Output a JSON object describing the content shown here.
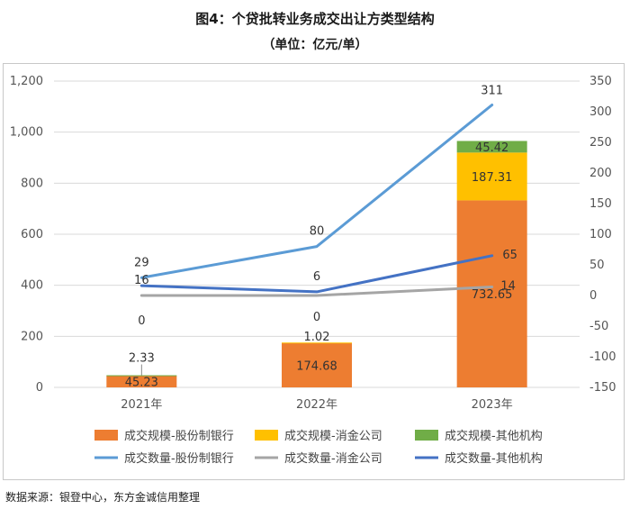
{
  "title": "图4：个贷批转业务成交出让方类型结构",
  "subtitle": "（单位：亿元/单）",
  "source": "数据来源：银登中心，东方金诚信用整理",
  "chart_data": {
    "type": "bar+line",
    "categories": [
      "2021年",
      "2022年",
      "2023年"
    ],
    "left_axis": {
      "min": 0,
      "max": 1200,
      "step": 200,
      "ticks": [
        "0",
        "200",
        "400",
        "600",
        "800",
        "1,000",
        "1,200"
      ]
    },
    "right_axis": {
      "min": -150,
      "max": 350,
      "step": 50,
      "ticks": [
        "-150",
        "-100",
        "-50",
        "0",
        "50",
        "100",
        "150",
        "200",
        "250",
        "300",
        "350"
      ]
    },
    "bar_series": [
      {
        "name": "成交规模-股份制银行",
        "color": "#ED7D31",
        "values": [
          45.23,
          174.68,
          732.65
        ]
      },
      {
        "name": "成交规模-消金公司",
        "color": "#FFC000",
        "values": [
          0,
          1.02,
          187.31
        ]
      },
      {
        "name": "成交规模-其他机构",
        "color": "#70AD47",
        "values": [
          2.33,
          0,
          45.42
        ]
      }
    ],
    "bar_labels": [
      [
        "45.23",
        "174.68",
        "732.65"
      ],
      [
        "",
        "1.02",
        "187.31"
      ],
      [
        "2.33",
        "",
        "45.42"
      ]
    ],
    "line_series": [
      {
        "name": "成交数量-股份制银行",
        "color": "#5B9BD5",
        "values": [
          29,
          80,
          311
        ],
        "labels": [
          "29",
          "80",
          "311"
        ]
      },
      {
        "name": "成交数量-消金公司",
        "color": "#A5A5A5",
        "values": [
          0,
          0,
          14
        ],
        "labels": [
          "0",
          "0",
          "14"
        ]
      },
      {
        "name": "成交数量-其他机构",
        "color": "#4472C4",
        "values": [
          16,
          6,
          65
        ],
        "labels": [
          "16",
          "6",
          "65"
        ]
      }
    ],
    "legend": [
      "成交规模-股份制银行",
      "成交规模-消金公司",
      "成交规模-其他机构",
      "成交数量-股份制银行",
      "成交数量-消金公司",
      "成交数量-其他机构"
    ]
  }
}
